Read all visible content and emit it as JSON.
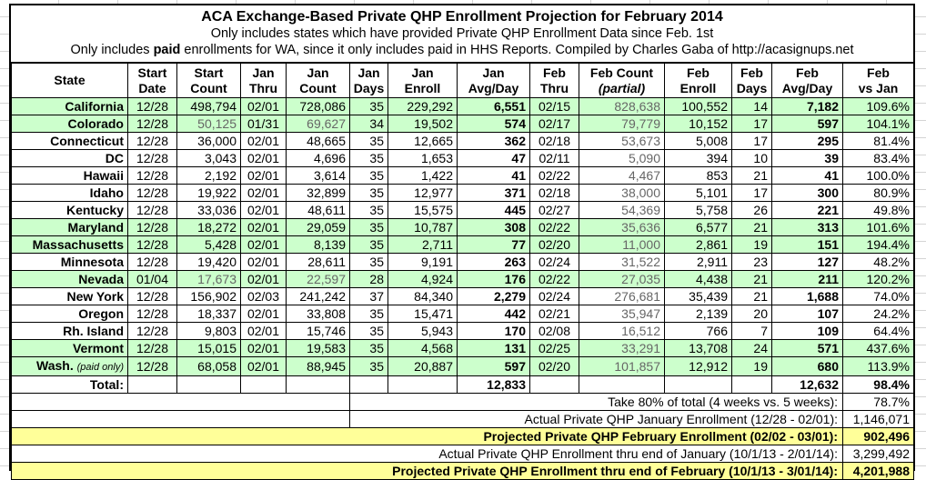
{
  "chart_data": {
    "type": "table",
    "title": "ACA Exchange-Based Private QHP Enrollment Projection for February 2014",
    "subtitle1": "Only includes states which have provided Private QHP Enrollment Data since Feb. 1st",
    "subtitle2_prefix": "Only includes ",
    "subtitle2_bold": "paid",
    "subtitle2_suffix": " enrollments for WA, since it only includes paid in HHS Reports. Compiled by Charles Gaba of http://acasignups.net",
    "columns": [
      {
        "id": "state",
        "line1": "State",
        "line2": "",
        "align": "right",
        "bold": false,
        "gray": false
      },
      {
        "id": "start_date",
        "line1": "Start",
        "line2": "Date",
        "align": "center",
        "bold": false,
        "gray": false
      },
      {
        "id": "start_count",
        "line1": "Start",
        "line2": "Count",
        "align": "right",
        "bold": false,
        "gray": false
      },
      {
        "id": "jan_thru",
        "line1": "Jan",
        "line2": "Thru",
        "align": "center",
        "bold": false,
        "gray": false
      },
      {
        "id": "jan_count",
        "line1": "Jan",
        "line2": "Count",
        "align": "right",
        "bold": false,
        "gray": false
      },
      {
        "id": "jan_days",
        "line1": "Jan",
        "line2": "Days",
        "align": "right",
        "bold": false,
        "gray": false
      },
      {
        "id": "jan_enroll",
        "line1": "Jan",
        "line2": "Enroll",
        "align": "right",
        "bold": false,
        "gray": false
      },
      {
        "id": "jan_avg_day",
        "line1": "Jan",
        "line2": "Avg/Day",
        "align": "right",
        "bold": true,
        "gray": false
      },
      {
        "id": "feb_thru",
        "line1": "Feb",
        "line2": "Thru",
        "align": "center",
        "bold": false,
        "gray": false
      },
      {
        "id": "feb_count_partial",
        "line1": "Feb Count",
        "line2": "(partial)",
        "align": "right",
        "bold": false,
        "gray": true,
        "line2_italic": true
      },
      {
        "id": "feb_enroll",
        "line1": "Feb",
        "line2": "Enroll",
        "align": "right",
        "bold": false,
        "gray": false
      },
      {
        "id": "feb_days",
        "line1": "Feb",
        "line2": "Days",
        "align": "right",
        "bold": false,
        "gray": false
      },
      {
        "id": "feb_avg_day",
        "line1": "Feb",
        "line2": "Avg/Day",
        "align": "right",
        "bold": true,
        "gray": false
      },
      {
        "id": "feb_vs_jan",
        "line1": "Feb",
        "line2": "vs Jan",
        "align": "right",
        "bold": false,
        "gray": false
      }
    ],
    "rows": [
      {
        "state": "California",
        "note": "",
        "green": true,
        "gray_cols": [],
        "values": [
          "12/28",
          "498,794",
          "02/01",
          "728,086",
          "35",
          "229,292",
          "6,551",
          "02/15",
          "828,638",
          "100,552",
          "14",
          "7,182",
          "109.6%"
        ]
      },
      {
        "state": "Colorado",
        "note": "",
        "green": true,
        "gray_cols": [
          1,
          3
        ],
        "values": [
          "12/28",
          "50,125",
          "01/31",
          "69,627",
          "34",
          "19,502",
          "574",
          "02/17",
          "79,779",
          "10,152",
          "17",
          "597",
          "104.1%"
        ]
      },
      {
        "state": "Connecticut",
        "note": "",
        "green": false,
        "gray_cols": [],
        "values": [
          "12/28",
          "36,000",
          "02/01",
          "48,665",
          "35",
          "12,665",
          "362",
          "02/18",
          "53,673",
          "5,008",
          "17",
          "295",
          "81.4%"
        ]
      },
      {
        "state": "DC",
        "note": "",
        "green": false,
        "gray_cols": [],
        "values": [
          "12/28",
          "3,043",
          "02/01",
          "4,696",
          "35",
          "1,653",
          "47",
          "02/11",
          "5,090",
          "394",
          "10",
          "39",
          "83.4%"
        ]
      },
      {
        "state": "Hawaii",
        "note": "",
        "green": false,
        "gray_cols": [],
        "values": [
          "12/28",
          "2,192",
          "02/01",
          "3,614",
          "35",
          "1,422",
          "41",
          "02/22",
          "4,467",
          "853",
          "21",
          "41",
          "100.0%"
        ]
      },
      {
        "state": "Idaho",
        "note": "",
        "green": false,
        "gray_cols": [],
        "values": [
          "12/28",
          "19,922",
          "02/01",
          "32,899",
          "35",
          "12,977",
          "371",
          "02/18",
          "38,000",
          "5,101",
          "17",
          "300",
          "80.9%"
        ]
      },
      {
        "state": "Kentucky",
        "note": "",
        "green": false,
        "gray_cols": [],
        "values": [
          "12/28",
          "33,036",
          "02/01",
          "48,611",
          "35",
          "15,575",
          "445",
          "02/27",
          "54,369",
          "5,758",
          "26",
          "221",
          "49.8%"
        ]
      },
      {
        "state": "Maryland",
        "note": "",
        "green": true,
        "gray_cols": [],
        "values": [
          "12/28",
          "18,272",
          "02/01",
          "29,059",
          "35",
          "10,787",
          "308",
          "02/22",
          "35,636",
          "6,577",
          "21",
          "313",
          "101.6%"
        ]
      },
      {
        "state": "Massachusetts",
        "note": "",
        "green": true,
        "gray_cols": [],
        "values": [
          "12/28",
          "5,428",
          "02/01",
          "8,139",
          "35",
          "2,711",
          "77",
          "02/20",
          "11,000",
          "2,861",
          "19",
          "151",
          "194.4%"
        ]
      },
      {
        "state": "Minnesota",
        "note": "",
        "green": false,
        "gray_cols": [],
        "values": [
          "12/28",
          "19,420",
          "02/01",
          "28,611",
          "35",
          "9,191",
          "263",
          "02/24",
          "31,522",
          "2,911",
          "23",
          "127",
          "48.2%"
        ]
      },
      {
        "state": "Nevada",
        "note": "",
        "green": true,
        "gray_cols": [
          1,
          3
        ],
        "values": [
          "01/04",
          "17,673",
          "02/01",
          "22,597",
          "28",
          "4,924",
          "176",
          "02/22",
          "27,035",
          "4,438",
          "21",
          "211",
          "120.2%"
        ]
      },
      {
        "state": "New York",
        "note": "",
        "green": false,
        "gray_cols": [],
        "values": [
          "12/28",
          "156,902",
          "02/03",
          "241,242",
          "37",
          "84,340",
          "2,279",
          "02/24",
          "276,681",
          "35,439",
          "21",
          "1,688",
          "74.0%"
        ]
      },
      {
        "state": "Oregon",
        "note": "",
        "green": false,
        "gray_cols": [],
        "values": [
          "12/28",
          "18,337",
          "02/01",
          "33,808",
          "35",
          "15,471",
          "442",
          "02/21",
          "35,947",
          "2,139",
          "20",
          "107",
          "24.2%"
        ]
      },
      {
        "state": "Rh. Island",
        "note": "",
        "green": false,
        "gray_cols": [],
        "values": [
          "12/28",
          "9,803",
          "02/01",
          "15,746",
          "35",
          "5,943",
          "170",
          "02/08",
          "16,512",
          "766",
          "7",
          "109",
          "64.4%"
        ]
      },
      {
        "state": "Vermont",
        "note": "",
        "green": true,
        "gray_cols": [],
        "values": [
          "12/28",
          "15,015",
          "02/01",
          "19,583",
          "35",
          "4,568",
          "131",
          "02/25",
          "33,291",
          "13,708",
          "24",
          "571",
          "437.6%"
        ]
      },
      {
        "state": "Wash.",
        "note": "(paid only)",
        "green": true,
        "gray_cols": [],
        "values": [
          "12/28",
          "68,058",
          "02/01",
          "88,945",
          "35",
          "20,887",
          "597",
          "02/20",
          "101,857",
          "12,912",
          "19",
          "680",
          "113.9%"
        ]
      }
    ],
    "total_row": {
      "label": "Total:",
      "values": [
        "",
        "",
        "",
        "",
        "",
        "12,833",
        "",
        "",
        "",
        "",
        "12,632",
        "98.4%"
      ]
    },
    "summary_rows": [
      {
        "label": "Take 80% of total (4 weeks vs. 5 weeks):",
        "value": "78.7%",
        "style": "plain",
        "left_empty": true
      },
      {
        "label": "Actual Private QHP January Enrollment (12/28 - 02/01):",
        "value": "1,146,071",
        "style": "plain",
        "left_empty": true
      },
      {
        "label": "Projected Private QHP February Enrollment (02/02 - 03/01):",
        "value": "902,496",
        "style": "yellow",
        "left_empty": false
      },
      {
        "label": "Actual Private QHP Enrollment thru end of January (10/1/13 - 2/01/14):",
        "value": "3,299,492",
        "style": "plain",
        "left_empty": false
      },
      {
        "label": "Projected Private QHP Enrollment thru end of February (10/1/13 - 3/01/14):",
        "value": "4,201,988",
        "style": "yellow",
        "left_empty": false
      }
    ],
    "colors": {
      "green_row": "#ccffcc",
      "yellow_row": "#ffff99",
      "gray_text": "#666666",
      "border": "#000000",
      "grid": "#d4d4d4"
    }
  }
}
